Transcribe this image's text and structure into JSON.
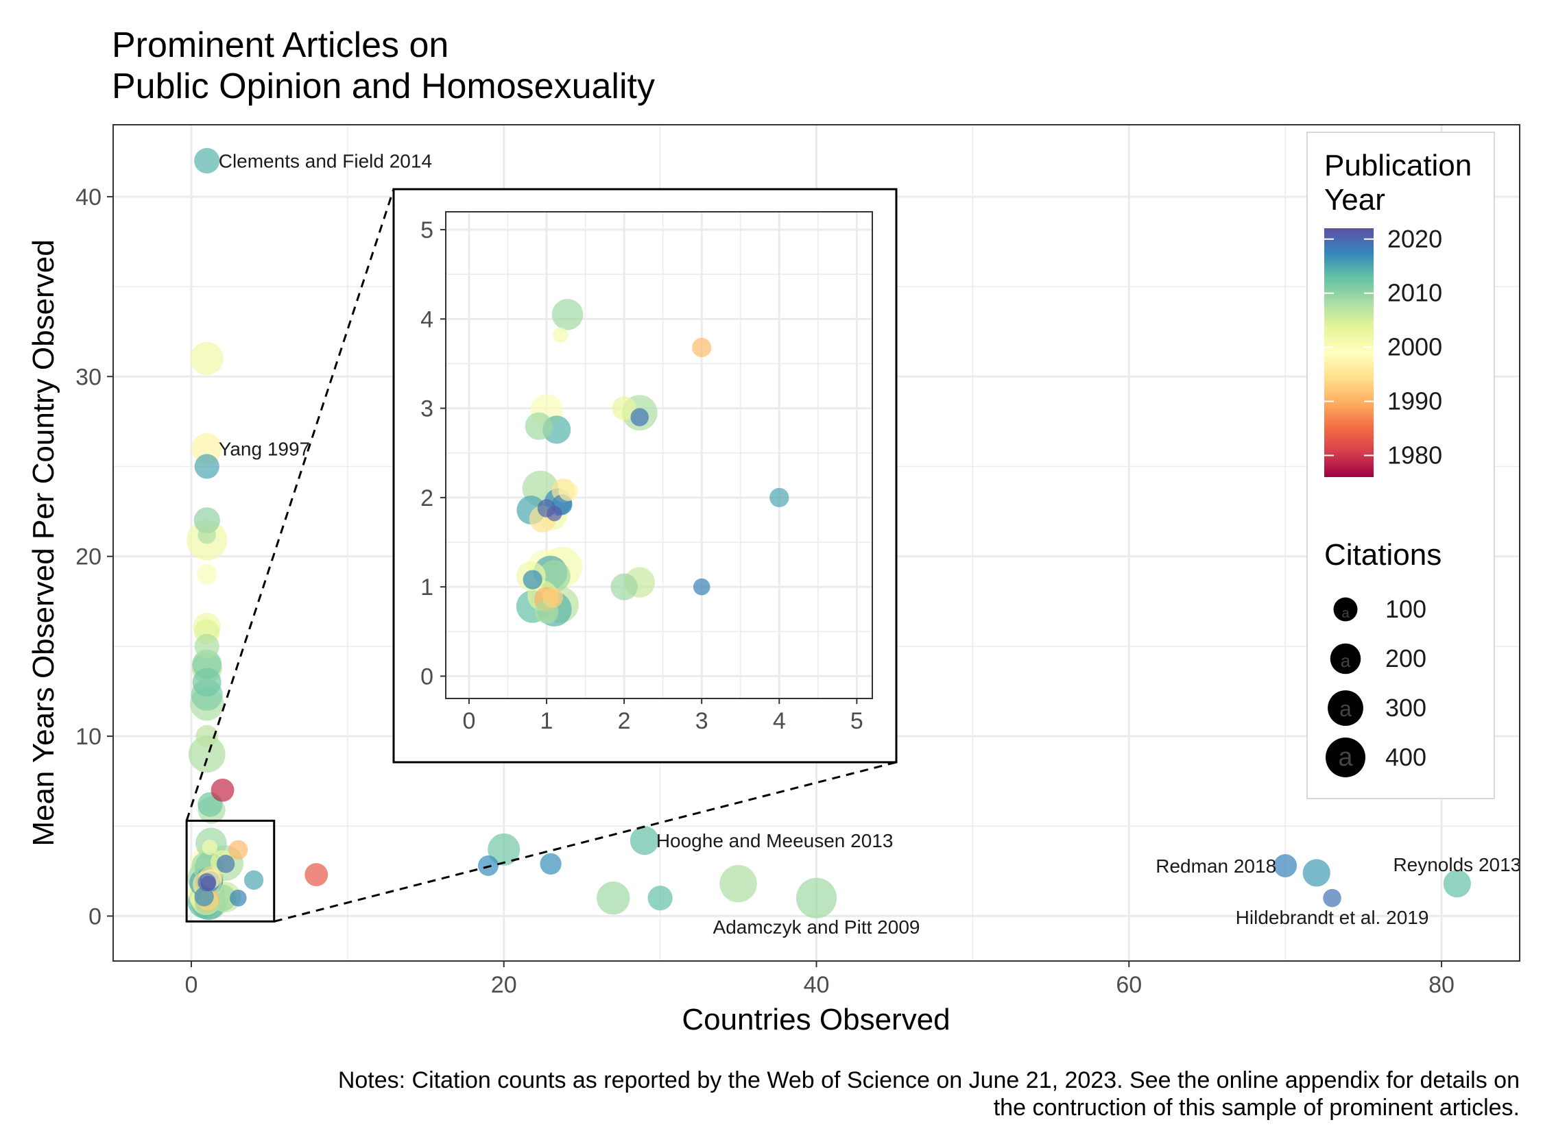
{
  "chart_data": {
    "type": "scatter",
    "title_lines": [
      "Prominent Articles on",
      "Public Opinion and Homosexuality"
    ],
    "xlabel": "Countries Observed",
    "ylabel": "Mean Years Observed Per Country Observed",
    "xlim": [
      -5,
      85
    ],
    "ylim": [
      -2.5,
      44
    ],
    "xticks": [
      0,
      20,
      40,
      60,
      80
    ],
    "yticks": [
      0,
      10,
      20,
      30,
      40
    ],
    "grid": true,
    "legend_color": {
      "title_lines": [
        "Publication",
        "Year"
      ],
      "ticks": [
        2020,
        2010,
        2000,
        1990,
        1980
      ],
      "range": [
        1976,
        2022
      ]
    },
    "legend_size": {
      "title": "Citations",
      "values": [
        100,
        200,
        300,
        400
      ],
      "glyph": "a"
    },
    "points": [
      {
        "x": 1,
        "y": 42,
        "year": 2014,
        "cites": 120
      },
      {
        "x": 1,
        "y": 31,
        "year": 2002,
        "cites": 250
      },
      {
        "x": 1,
        "y": 26,
        "year": 1997,
        "cites": 200
      },
      {
        "x": 1,
        "y": 25,
        "year": 2015,
        "cites": 110
      },
      {
        "x": 1,
        "y": 22,
        "year": 2010,
        "cites": 130
      },
      {
        "x": 1,
        "y": 21.2,
        "year": 2008,
        "cites": 40
      },
      {
        "x": 1,
        "y": 20.9,
        "year": 2002,
        "cites": 420
      },
      {
        "x": 1,
        "y": 19,
        "year": 2000,
        "cites": 60
      },
      {
        "x": 1,
        "y": 16.1,
        "year": 2002,
        "cites": 150
      },
      {
        "x": 1,
        "y": 15.8,
        "year": 2004,
        "cites": 120
      },
      {
        "x": 1,
        "y": 15,
        "year": 2008,
        "cites": 110
      },
      {
        "x": 1,
        "y": 14,
        "year": 2011,
        "cites": 180
      },
      {
        "x": 1,
        "y": 13.8,
        "year": 2007,
        "cites": 200
      },
      {
        "x": 1,
        "y": 13,
        "year": 2012,
        "cites": 170
      },
      {
        "x": 1,
        "y": 12.3,
        "year": 2011,
        "cites": 220
      },
      {
        "x": 1,
        "y": 11.8,
        "year": 2008,
        "cites": 260
      },
      {
        "x": 1,
        "y": 10,
        "year": 2007,
        "cites": 80
      },
      {
        "x": 1,
        "y": 9,
        "year": 2008,
        "cites": 330
      },
      {
        "x": 2,
        "y": 7,
        "year": 1979,
        "cites": 90
      },
      {
        "x": 1.2,
        "y": 6.2,
        "year": 2012,
        "cites": 110
      },
      {
        "x": 1.3,
        "y": 5.9,
        "year": 2008,
        "cites": 150
      },
      {
        "x": 8,
        "y": 2.3,
        "year": 1983,
        "cites": 90
      },
      {
        "x": 19,
        "y": 2.8,
        "year": 2017,
        "cites": 60
      },
      {
        "x": 20,
        "y": 3.7,
        "year": 2012,
        "cites": 230
      },
      {
        "x": 23,
        "y": 2.9,
        "year": 2017,
        "cites": 70
      },
      {
        "x": 27,
        "y": 1,
        "year": 2009,
        "cites": 250
      },
      {
        "x": 29,
        "y": 4.2,
        "year": 2013,
        "cites": 170
      },
      {
        "x": 30,
        "y": 1,
        "year": 2013,
        "cites": 110
      },
      {
        "x": 35,
        "y": 1.8,
        "year": 2008,
        "cites": 340
      },
      {
        "x": 40,
        "y": 1,
        "year": 2009,
        "cites": 420
      },
      {
        "x": 70,
        "y": 2.8,
        "year": 2018,
        "cites": 90
      },
      {
        "x": 72,
        "y": 2.4,
        "year": 2016,
        "cites": 150
      },
      {
        "x": 73,
        "y": 1,
        "year": 2019,
        "cites": 40
      },
      {
        "x": 81,
        "y": 1.8,
        "year": 2013,
        "cites": 150
      },
      {
        "x": 1.27,
        "y": 4.05,
        "year": 2009,
        "cites": 210
      },
      {
        "x": 1.18,
        "y": 3.82,
        "year": 2001,
        "cites": 20
      },
      {
        "x": 3,
        "y": 3.68,
        "year": 1991,
        "cites": 50
      },
      {
        "x": 1,
        "y": 2.98,
        "year": 2000,
        "cites": 230
      },
      {
        "x": 2.2,
        "y": 2.95,
        "year": 2008,
        "cites": 300
      },
      {
        "x": 2.2,
        "y": 2.9,
        "year": 2019,
        "cites": 40
      },
      {
        "x": 0.9,
        "y": 2.8,
        "year": 2009,
        "cites": 150
      },
      {
        "x": 1.13,
        "y": 2.76,
        "year": 2014,
        "cites": 160
      },
      {
        "x": 0.92,
        "y": 2.1,
        "year": 2008,
        "cites": 310
      },
      {
        "x": 1.22,
        "y": 2.08,
        "year": 1995,
        "cites": 100
      },
      {
        "x": 1.28,
        "y": 2.07,
        "year": 1997,
        "cites": 50
      },
      {
        "x": 4,
        "y": 2,
        "year": 2015,
        "cites": 50
      },
      {
        "x": 1.15,
        "y": 1.95,
        "year": 2017,
        "cites": 150
      },
      {
        "x": 1.2,
        "y": 1.92,
        "year": 2018,
        "cites": 60
      },
      {
        "x": 0.8,
        "y": 1.86,
        "year": 2015,
        "cites": 170
      },
      {
        "x": 1.0,
        "y": 1.88,
        "year": 2020,
        "cites": 40
      },
      {
        "x": 1.1,
        "y": 1.82,
        "year": 2021,
        "cites": 20
      },
      {
        "x": 1.07,
        "y": 1.8,
        "year": 2002,
        "cites": 190
      },
      {
        "x": 0.95,
        "y": 1.76,
        "year": 1995,
        "cites": 140
      },
      {
        "x": 1.2,
        "y": 1.22,
        "year": 2001,
        "cites": 420
      },
      {
        "x": 1.0,
        "y": 1.2,
        "year": 2000,
        "cites": 390
      },
      {
        "x": 1.05,
        "y": 1.16,
        "year": 2015,
        "cites": 260
      },
      {
        "x": 0.8,
        "y": 1.12,
        "year": 2002,
        "cites": 180
      },
      {
        "x": 1.1,
        "y": 1.12,
        "year": 2009,
        "cites": 230
      },
      {
        "x": 0.82,
        "y": 1.08,
        "year": 2017,
        "cites": 50
      },
      {
        "x": 2,
        "y": 1,
        "year": 2009,
        "cites": 140
      },
      {
        "x": 3,
        "y": 1,
        "year": 2018,
        "cites": 30
      },
      {
        "x": 0.95,
        "y": 0.9,
        "year": 2004,
        "cites": 200
      },
      {
        "x": 1.0,
        "y": 0.86,
        "year": 1990,
        "cites": 110
      },
      {
        "x": 1.08,
        "y": 0.88,
        "year": 1993,
        "cites": 60
      },
      {
        "x": 0.82,
        "y": 0.78,
        "year": 2013,
        "cites": 240
      },
      {
        "x": 1.18,
        "y": 0.8,
        "year": 2007,
        "cites": 320
      },
      {
        "x": 1.1,
        "y": 0.75,
        "year": 2014,
        "cites": 280
      },
      {
        "x": 1.0,
        "y": 0.72,
        "year": 2008,
        "cites": 100
      },
      {
        "x": 2,
        "y": 3,
        "year": 2003,
        "cites": 100
      },
      {
        "x": 2.2,
        "y": 1.05,
        "year": 2006,
        "cites": 200
      }
    ],
    "annotations": [
      {
        "text": "Clements and Field 2014",
        "x": 1,
        "y": 42,
        "anchor": "start"
      },
      {
        "text": "Yang 1997",
        "x": 1,
        "y": 26,
        "anchor": "start"
      },
      {
        "text": "Hooghe and Meeusen 2013",
        "x": 29,
        "y": 4.2,
        "anchor": "start"
      },
      {
        "text": "Adamczyk and Pitt 2009",
        "x": 40,
        "y": 1,
        "anchor": "middle"
      },
      {
        "text": "Redman 2018",
        "x": 70,
        "y": 2.8,
        "anchor": "end"
      },
      {
        "text": "Reynolds 2013",
        "x": 81,
        "y": 1.8,
        "anchor": "middle"
      },
      {
        "text": "Hildebrandt et al. 2019",
        "x": 73,
        "y": 1,
        "anchor": "middle"
      }
    ],
    "inset": {
      "xlim": [
        -0.3,
        5.2
      ],
      "ylim": [
        -0.25,
        5.2
      ],
      "xticks": [
        0,
        1,
        2,
        3,
        4,
        5
      ],
      "yticks": [
        0,
        1,
        2,
        3,
        4,
        5
      ],
      "zoom_box_x": [
        -0.3,
        5.3
      ],
      "zoom_box_y": [
        -0.3,
        5.3
      ]
    },
    "notes_lines": [
      "Notes: Citation counts as reported by the Web of Science on June 21, 2023. See the online appendix for details on",
      "the contruction of this sample of prominent articles."
    ]
  }
}
